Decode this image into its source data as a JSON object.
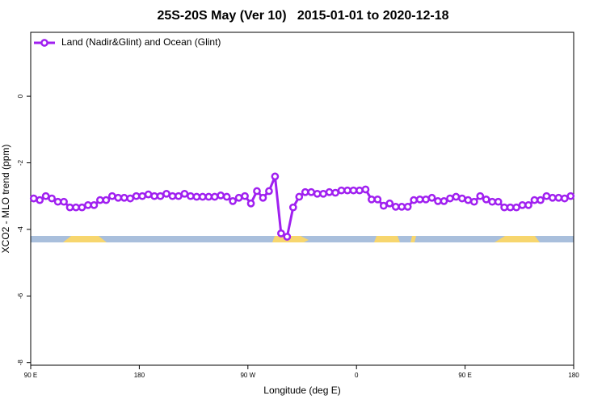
{
  "chart_data": {
    "type": "line",
    "title": "25S-20S May (Ver 10)   2015-01-01 to 2020-12-18",
    "x_label": "Longitude (deg E)",
    "y_label": "XCO2 - MLO trend (ppm)",
    "xlim": [
      90,
      540
    ],
    "xticks": [
      {
        "value": 90,
        "label": "90 E"
      },
      {
        "value": 180,
        "label": "180"
      },
      {
        "value": 270,
        "label": "90 W"
      },
      {
        "value": 360,
        "label": "0"
      },
      {
        "value": 450,
        "label": "90 E"
      },
      {
        "value": 540,
        "label": "180"
      }
    ],
    "ylim": [
      -8.08,
      1.92
    ],
    "yticks": [
      0,
      -2,
      -4,
      -6,
      -8
    ],
    "legend": "topleft",
    "x": [
      92.5,
      97.5,
      102.5,
      107.5,
      112.5,
      117.5,
      122.5,
      127.5,
      132.5,
      137.5,
      142.5,
      147.5,
      152.5,
      157.5,
      162.5,
      167.5,
      172.5,
      177.5,
      182.5,
      187.5,
      192.5,
      197.5,
      202.5,
      207.5,
      212.5,
      217.5,
      222.5,
      227.5,
      232.5,
      237.5,
      242.5,
      247.5,
      252.5,
      257.5,
      262.5,
      267.5,
      272.5,
      277.5,
      282.5,
      287.5,
      292.5,
      297.5,
      302.5,
      307.5,
      312.5,
      317.5,
      322.5,
      327.5,
      332.5,
      337.5,
      342.5,
      347.5,
      352.5,
      357.5,
      362.5,
      367.5,
      372.5,
      377.5,
      382.5,
      387.5,
      392.5,
      397.5,
      402.5,
      407.5,
      412.5,
      417.5,
      422.5,
      427.5,
      432.5,
      437.5,
      442.5,
      447.5,
      452.5,
      457.5,
      462.5,
      467.5,
      472.5,
      477.5,
      482.5,
      487.5,
      492.5,
      497.5,
      502.5,
      507.5,
      512.5,
      517.5,
      522.5,
      527.5,
      532.5,
      537.5
    ],
    "series": [
      {
        "name": "Land (Nadir&Glint) and Ocean (Glint)",
        "color": "#a020f0",
        "values": [
          -3.07,
          -3.12,
          -3.0,
          -3.07,
          -3.17,
          -3.17,
          -3.34,
          -3.34,
          -3.34,
          -3.27,
          -3.27,
          -3.12,
          -3.12,
          -3.0,
          -3.05,
          -3.05,
          -3.07,
          -3.0,
          -3.0,
          -2.95,
          -3.0,
          -3.0,
          -2.93,
          -3.0,
          -3.0,
          -2.93,
          -3.0,
          -3.02,
          -3.02,
          -3.02,
          -3.02,
          -2.98,
          -3.02,
          -3.15,
          -3.05,
          -3.0,
          -3.22,
          -2.85,
          -3.05,
          -2.85,
          -2.41,
          -4.12,
          -4.22,
          -3.34,
          -3.02,
          -2.88,
          -2.88,
          -2.93,
          -2.93,
          -2.88,
          -2.9,
          -2.83,
          -2.83,
          -2.83,
          -2.83,
          -2.8,
          -3.1,
          -3.1,
          -3.29,
          -3.22,
          -3.32,
          -3.32,
          -3.32,
          -3.12,
          -3.1,
          -3.1,
          -3.05,
          -3.15,
          -3.15,
          -3.07,
          -3.02,
          -3.07,
          -3.12,
          -3.17,
          -3.0,
          -3.1,
          -3.17,
          -3.17,
          -3.34,
          -3.34,
          -3.34,
          -3.27,
          -3.27,
          -3.12,
          -3.12,
          -3.0,
          -3.05,
          -3.05,
          -3.07,
          -3.0
        ]
      }
    ]
  }
}
